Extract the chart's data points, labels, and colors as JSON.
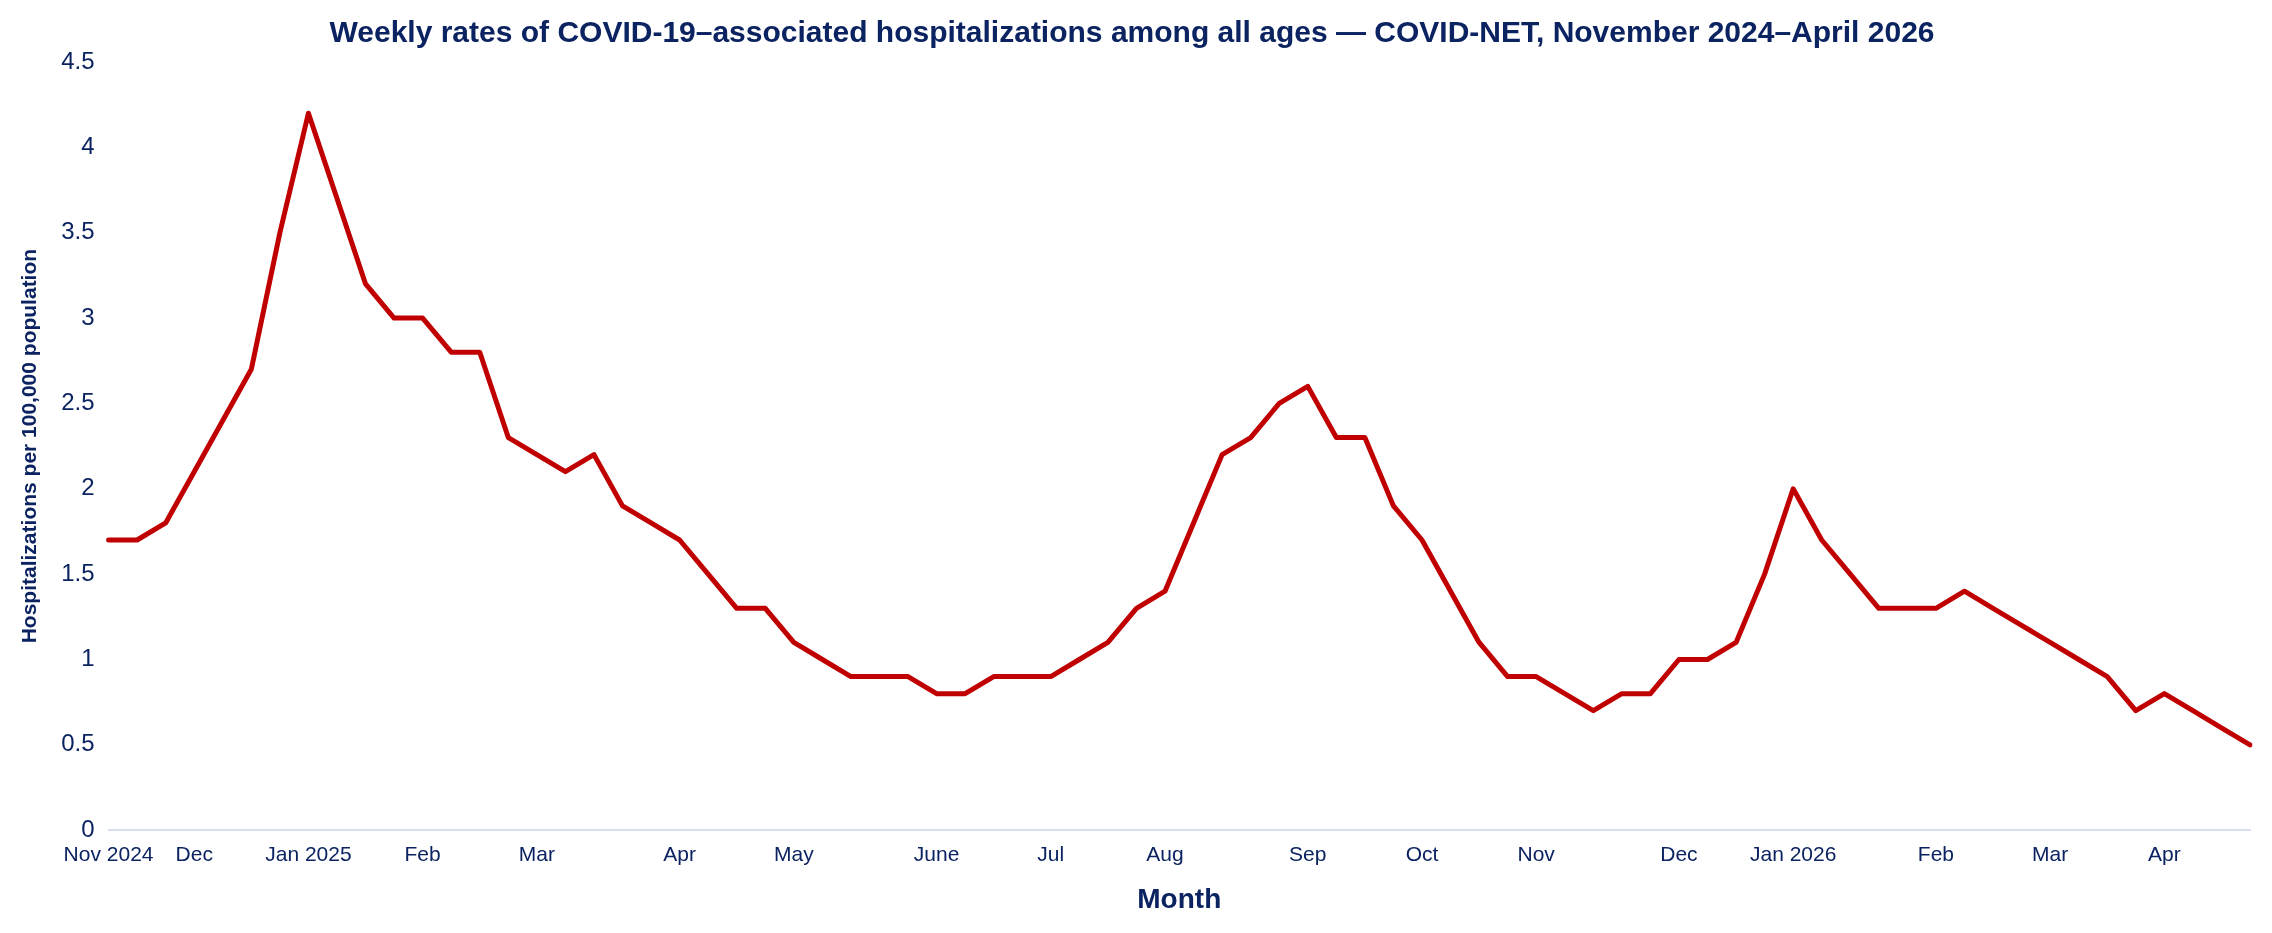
{
  "chart_data": {
    "type": "line",
    "title": "Weekly rates of COVID-19–associated hospitalizations among all ages — COVID-NET, November 2024–April 2026",
    "xlabel": "Month",
    "ylabel": "Hospitalizations per 100,000 population",
    "categories": [
      "Nov 2024",
      null,
      null,
      "Dec",
      null,
      null,
      null,
      "Jan 2025",
      null,
      null,
      null,
      "Feb",
      null,
      null,
      null,
      "Mar",
      null,
      null,
      null,
      null,
      "Apr",
      null,
      null,
      null,
      "May",
      null,
      null,
      null,
      null,
      "June",
      null,
      null,
      null,
      "Jul",
      null,
      null,
      null,
      "Aug",
      null,
      null,
      null,
      null,
      "Sep",
      null,
      null,
      null,
      "Oct",
      null,
      null,
      null,
      "Nov",
      null,
      null,
      null,
      null,
      "Dec",
      null,
      null,
      null,
      "Jan 2026",
      null,
      null,
      null,
      null,
      "Feb",
      null,
      null,
      null,
      "Mar",
      null,
      null,
      null,
      "Apr",
      null,
      null,
      null
    ],
    "series": [
      {
        "color": "#c00000",
        "values": [
          1.7,
          1.7,
          1.8,
          2.1,
          2.4,
          2.7,
          3.5,
          4.2,
          3.7,
          3.2,
          3.0,
          3.0,
          2.8,
          2.8,
          2.3,
          2.2,
          2.1,
          2.2,
          1.9,
          1.8,
          1.7,
          1.5,
          1.3,
          1.3,
          1.1,
          1.0,
          0.9,
          0.9,
          0.9,
          0.8,
          0.8,
          0.9,
          0.9,
          0.9,
          1.0,
          1.1,
          1.3,
          1.4,
          1.8,
          2.2,
          2.3,
          2.5,
          2.6,
          2.3,
          2.3,
          1.9,
          1.7,
          1.4,
          1.1,
          0.9,
          0.9,
          0.8,
          0.7,
          0.8,
          0.8,
          1.0,
          1.0,
          1.1,
          1.5,
          2.0,
          1.7,
          1.5,
          1.3,
          1.3,
          1.3,
          1.4,
          1.3,
          1.2,
          1.1,
          1.0,
          0.9,
          0.7,
          0.8,
          0.7,
          0.6,
          0.5
        ]
      }
    ],
    "ylim": [
      0,
      4.5
    ],
    "yticks": [
      0,
      0.5,
      1,
      1.5,
      2,
      2.5,
      3,
      3.5,
      4,
      4.5
    ],
    "grid": false,
    "legend": false,
    "marker": "none",
    "line_style": "solid"
  }
}
